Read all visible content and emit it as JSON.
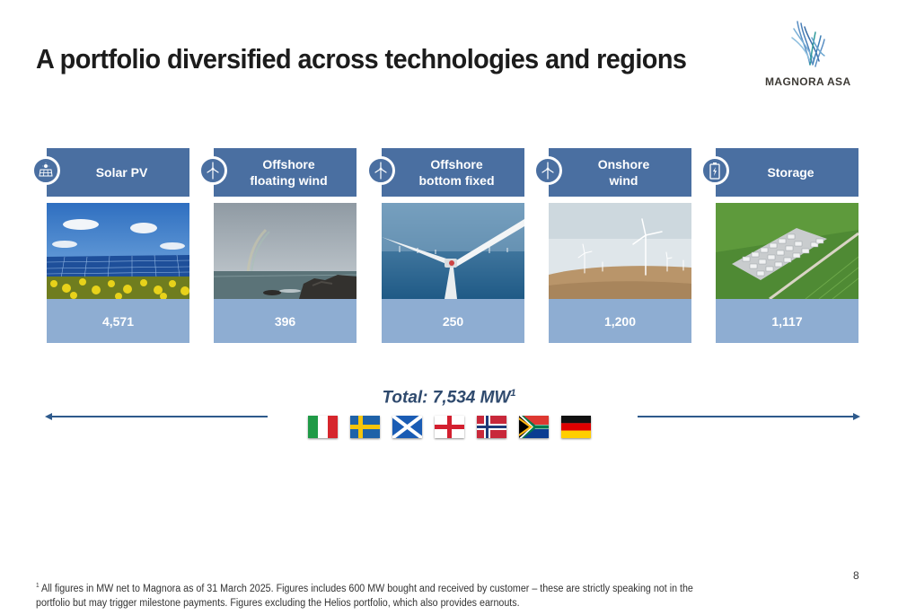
{
  "title": "A portfolio diversified across technologies and regions",
  "logo": {
    "text": "MAGNORA ASA"
  },
  "technologies": [
    {
      "name": "Solar PV",
      "icon": "solar-panel-icon",
      "value": "4,571"
    },
    {
      "name": "Offshore floating wind",
      "icon": "wind-turbine-icon",
      "value": "396"
    },
    {
      "name": "Offshore bottom fixed",
      "icon": "wind-turbine-icon",
      "value": "250"
    },
    {
      "name": "Onshore wind",
      "icon": "wind-turbine-icon",
      "value": "1,200"
    },
    {
      "name": "Storage",
      "icon": "battery-icon",
      "value": "1,117"
    }
  ],
  "total": {
    "label": "Total: 7,534 MW",
    "footnote_marker": "1"
  },
  "flags": [
    "italy-flag",
    "sweden-flag",
    "scotland-flag",
    "england-flag",
    "norway-flag",
    "south-africa-flag",
    "germany-flag"
  ],
  "colors": {
    "header_blue": "#4a6fa1",
    "value_blue": "#8eadd2",
    "arrow": "#2e5a8c"
  },
  "page_number": "8",
  "footnote": {
    "marker": "1",
    "text": " All figures in MW net to Magnora as of 31 March 2025. Figures includes 600 MW bought and received by customer – these are strictly speaking not in the portfolio but may trigger milestone payments. Figures excluding the Helios portfolio, which also provides earnouts."
  }
}
